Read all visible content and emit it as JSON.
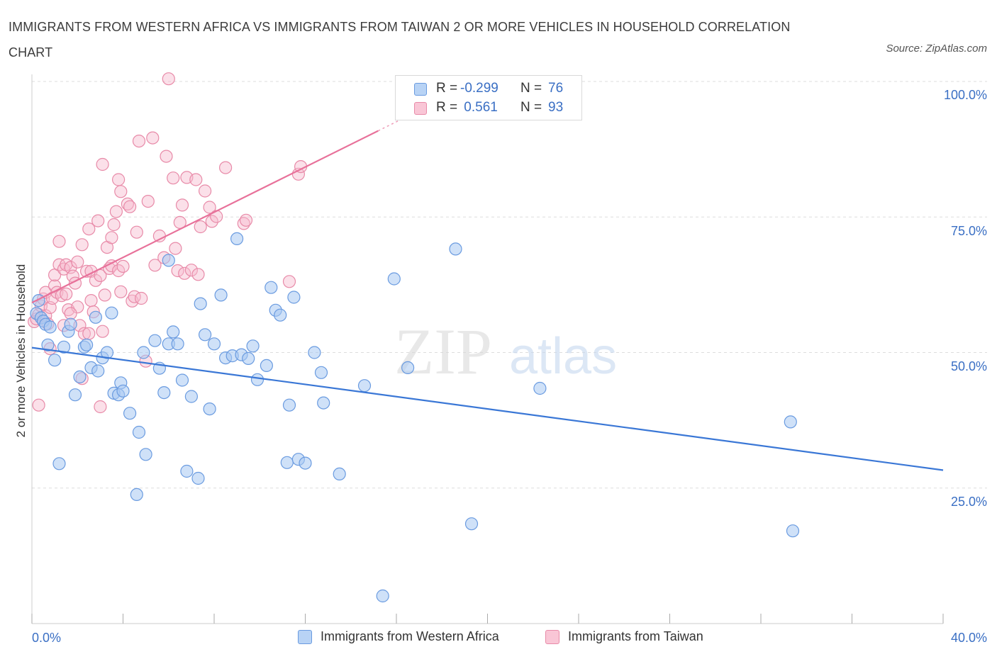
{
  "header": {
    "title": "IMMIGRANTS FROM WESTERN AFRICA VS IMMIGRANTS FROM TAIWAN 2 OR MORE VEHICLES IN HOUSEHOLD CORRELATION CHART",
    "source": "Source: ZipAtlas.com"
  },
  "watermark": {
    "zip": "ZIP",
    "atlas": "atlas"
  },
  "legend": {
    "r_label": "R =",
    "n_label": "N =",
    "series": [
      {
        "name": "Immigrants from Western Africa",
        "r": "-0.299",
        "n": "76",
        "fill": "#b8d3f5",
        "stroke": "#6a9be0"
      },
      {
        "name": "Immigrants from Taiwan",
        "r": " 0.561",
        "n": "93",
        "fill": "#f9c6d6",
        "stroke": "#e88aa8"
      }
    ]
  },
  "chart_data": {
    "type": "scatter",
    "title": "IMMIGRANTS FROM WESTERN AFRICA VS IMMIGRANTS FROM TAIWAN 2 OR MORE VEHICLES IN HOUSEHOLD CORRELATION CHART",
    "xlabel": "",
    "ylabel": "2 or more Vehicles in Household",
    "xlim": [
      0,
      40
    ],
    "ylim": [
      0,
      100
    ],
    "x_tick_labels": [
      "0.0%",
      "40.0%"
    ],
    "y_tick_labels": [
      "100.0%",
      "75.0%",
      "50.0%",
      "25.0%"
    ],
    "y_tick_values": [
      100,
      75,
      50,
      25
    ],
    "grid": true,
    "legend_position": "top-center",
    "colors": {
      "blue": "#3a77d6",
      "pink": "#e8719a",
      "tick": "#3a6fc4"
    },
    "series": [
      {
        "name": "Immigrants from Western Africa",
        "trend": {
          "x0": 0,
          "y0": 50.9,
          "x1": 40,
          "y1": 28.3
        },
        "points": [
          [
            0.2,
            57.2
          ],
          [
            0.3,
            59.6
          ],
          [
            0.4,
            56.4
          ],
          [
            0.5,
            55.8
          ],
          [
            0.6,
            55.2
          ],
          [
            0.7,
            51.4
          ],
          [
            0.8,
            54.7
          ],
          [
            1.0,
            48.6
          ],
          [
            1.2,
            29.5
          ],
          [
            1.4,
            51.0
          ],
          [
            1.6,
            53.9
          ],
          [
            1.7,
            55.2
          ],
          [
            1.9,
            42.2
          ],
          [
            2.1,
            45.5
          ],
          [
            2.3,
            51.0
          ],
          [
            2.4,
            51.4
          ],
          [
            2.6,
            47.2
          ],
          [
            2.8,
            56.5
          ],
          [
            2.9,
            46.6
          ],
          [
            3.1,
            49.0
          ],
          [
            3.3,
            50.0
          ],
          [
            3.5,
            57.3
          ],
          [
            3.6,
            42.5
          ],
          [
            3.8,
            42.2
          ],
          [
            3.9,
            44.4
          ],
          [
            4.0,
            42.9
          ],
          [
            4.3,
            38.8
          ],
          [
            4.6,
            23.8
          ],
          [
            4.7,
            35.3
          ],
          [
            4.9,
            50.0
          ],
          [
            5.0,
            31.2
          ],
          [
            5.4,
            52.2
          ],
          [
            5.6,
            47.1
          ],
          [
            5.8,
            42.6
          ],
          [
            6.0,
            51.6
          ],
          [
            6.2,
            53.8
          ],
          [
            6.4,
            51.6
          ],
          [
            6.6,
            44.9
          ],
          [
            6.8,
            28.1
          ],
          [
            7.0,
            41.9
          ],
          [
            7.3,
            26.8
          ],
          [
            7.4,
            59.0
          ],
          [
            7.6,
            53.3
          ],
          [
            7.8,
            39.6
          ],
          [
            8.0,
            51.6
          ],
          [
            8.3,
            60.6
          ],
          [
            8.5,
            49.0
          ],
          [
            8.8,
            49.4
          ],
          [
            9.0,
            71.0
          ],
          [
            9.2,
            49.6
          ],
          [
            9.5,
            48.9
          ],
          [
            9.7,
            51.2
          ],
          [
            9.9,
            45.0
          ],
          [
            10.3,
            47.6
          ],
          [
            10.5,
            62.0
          ],
          [
            10.7,
            57.8
          ],
          [
            10.9,
            56.9
          ],
          [
            11.2,
            29.7
          ],
          [
            11.3,
            40.3
          ],
          [
            11.5,
            60.2
          ],
          [
            11.7,
            30.3
          ],
          [
            12.0,
            29.6
          ],
          [
            12.4,
            50.0
          ],
          [
            12.7,
            46.3
          ],
          [
            12.8,
            40.7
          ],
          [
            13.5,
            27.6
          ],
          [
            14.6,
            43.9
          ],
          [
            15.4,
            5.1
          ],
          [
            15.9,
            63.6
          ],
          [
            16.5,
            47.2
          ],
          [
            18.6,
            69.1
          ],
          [
            19.3,
            18.4
          ],
          [
            22.3,
            43.4
          ],
          [
            33.3,
            37.2
          ],
          [
            33.4,
            17.1
          ],
          [
            6.0,
            67.0
          ]
        ]
      },
      {
        "name": "Immigrants from Taiwan",
        "trend": {
          "x0": 0,
          "y0": 59.2,
          "x1": 15.2,
          "y1": 90.9
        },
        "points": [
          [
            0.1,
            55.7
          ],
          [
            0.2,
            56.2
          ],
          [
            0.3,
            57.0
          ],
          [
            0.3,
            40.3
          ],
          [
            0.4,
            58.6
          ],
          [
            0.5,
            59.9
          ],
          [
            0.6,
            61.1
          ],
          [
            0.6,
            56.8
          ],
          [
            0.7,
            55.3
          ],
          [
            0.8,
            58.3
          ],
          [
            0.9,
            60.0
          ],
          [
            1.0,
            62.3
          ],
          [
            1.0,
            64.3
          ],
          [
            1.1,
            61.1
          ],
          [
            1.2,
            66.2
          ],
          [
            1.2,
            70.5
          ],
          [
            1.3,
            60.5
          ],
          [
            1.4,
            65.4
          ],
          [
            1.4,
            55.0
          ],
          [
            1.5,
            66.2
          ],
          [
            1.6,
            57.9
          ],
          [
            1.7,
            65.7
          ],
          [
            1.8,
            64.1
          ],
          [
            1.9,
            62.8
          ],
          [
            2.0,
            66.7
          ],
          [
            2.0,
            58.4
          ],
          [
            2.1,
            55.0
          ],
          [
            2.2,
            69.9
          ],
          [
            2.3,
            53.5
          ],
          [
            2.4,
            65.0
          ],
          [
            2.5,
            72.8
          ],
          [
            2.5,
            53.5
          ],
          [
            2.6,
            65.0
          ],
          [
            2.6,
            59.6
          ],
          [
            2.7,
            57.5
          ],
          [
            2.8,
            63.3
          ],
          [
            2.9,
            74.3
          ],
          [
            3.0,
            64.2
          ],
          [
            3.0,
            40.0
          ],
          [
            3.1,
            53.9
          ],
          [
            3.1,
            84.7
          ],
          [
            3.2,
            60.6
          ],
          [
            3.3,
            69.4
          ],
          [
            3.4,
            65.5
          ],
          [
            3.5,
            66.0
          ],
          [
            3.5,
            71.2
          ],
          [
            3.6,
            73.6
          ],
          [
            3.7,
            76.0
          ],
          [
            3.8,
            65.1
          ],
          [
            3.8,
            81.9
          ],
          [
            3.9,
            79.7
          ],
          [
            4.0,
            65.9
          ],
          [
            4.2,
            77.4
          ],
          [
            4.3,
            76.9
          ],
          [
            4.4,
            59.5
          ],
          [
            4.5,
            60.3
          ],
          [
            4.6,
            72.2
          ],
          [
            4.7,
            89.0
          ],
          [
            4.8,
            60.0
          ],
          [
            5.0,
            48.4
          ],
          [
            5.1,
            77.9
          ],
          [
            5.3,
            89.6
          ],
          [
            5.4,
            66.1
          ],
          [
            5.6,
            71.5
          ],
          [
            5.9,
            86.2
          ],
          [
            6.0,
            100.5
          ],
          [
            6.2,
            82.2
          ],
          [
            6.3,
            69.2
          ],
          [
            6.4,
            65.1
          ],
          [
            6.5,
            74.0
          ],
          [
            6.6,
            77.2
          ],
          [
            6.7,
            64.6
          ],
          [
            6.8,
            82.3
          ],
          [
            7.0,
            65.2
          ],
          [
            7.2,
            81.9
          ],
          [
            7.3,
            64.4
          ],
          [
            7.6,
            79.8
          ],
          [
            7.8,
            76.8
          ],
          [
            7.9,
            74.2
          ],
          [
            8.1,
            75.1
          ],
          [
            8.5,
            84.1
          ],
          [
            9.3,
            73.8
          ],
          [
            9.4,
            74.4
          ],
          [
            11.3,
            63.1
          ],
          [
            11.7,
            82.9
          ],
          [
            11.8,
            84.3
          ],
          [
            1.5,
            60.8
          ],
          [
            2.2,
            45.2
          ],
          [
            0.8,
            50.7
          ],
          [
            1.7,
            57.2
          ],
          [
            3.9,
            61.2
          ],
          [
            5.8,
            67.5
          ],
          [
            7.4,
            73.2
          ]
        ]
      }
    ]
  },
  "axis": {
    "x_min_label": "0.0%",
    "x_max_label": "40.0%",
    "y_labels": [
      "100.0%",
      "75.0%",
      "50.0%",
      "25.0%"
    ]
  }
}
